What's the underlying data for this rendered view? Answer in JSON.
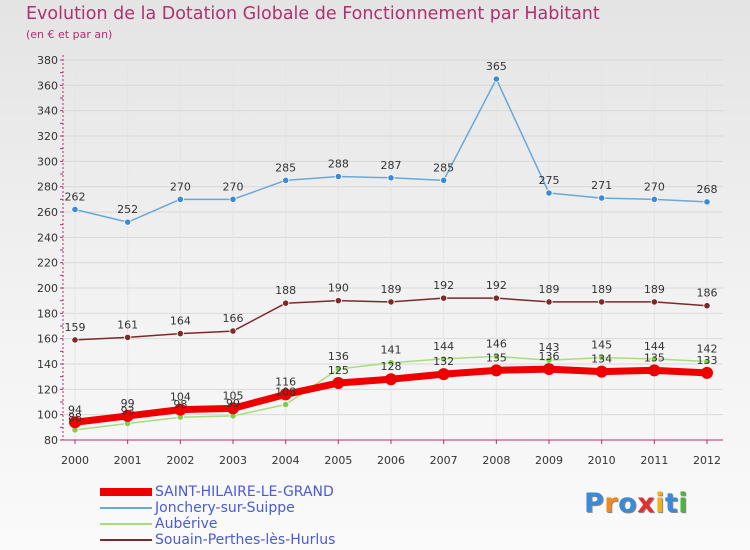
{
  "header": {
    "title": "Evolution de la Dotation Globale de Fonctionnement par Habitant",
    "subtitle": "(en € et par an)"
  },
  "brand": {
    "letters": [
      "P",
      "r",
      "o",
      "x",
      "i",
      "t",
      "i"
    ]
  },
  "colors": {
    "title": "#b03070",
    "axis": "#b03070",
    "grid": "#d8d8d8",
    "legend_text": "#4a5ad8",
    "brand": [
      "#3a8ad8",
      "#f08a20",
      "#3a8ad8",
      "#e03030",
      "#f0b020",
      "#3a8ad8",
      "#50b040"
    ]
  },
  "chart_data": {
    "type": "line",
    "title": "Evolution de la Dotation Globale de Fonctionnement par Habitant",
    "ylabel": "(en € et par an)",
    "xlabel": "",
    "x": [
      "2000",
      "2001",
      "2002",
      "2003",
      "2004",
      "2005",
      "2006",
      "2007",
      "2008",
      "2009",
      "2010",
      "2011",
      "2012"
    ],
    "ylim": [
      80,
      380
    ],
    "yticks": [
      80,
      100,
      120,
      140,
      160,
      180,
      200,
      220,
      240,
      260,
      280,
      300,
      320,
      340,
      360,
      380
    ],
    "grid": true,
    "legend_position": "bottom-left",
    "series": [
      {
        "name": "SAINT-HILAIRE-LE-GRAND",
        "color": "#ee0000",
        "marker": "#ee0000",
        "width": 7,
        "values": [
          94,
          99,
          104,
          105,
          116,
          125,
          128,
          132,
          135,
          136,
          134,
          135,
          133
        ],
        "labels": [
          "94",
          "99",
          "104",
          "105",
          "116",
          "125",
          "128",
          "132",
          "135",
          "136",
          "134",
          "135",
          "133"
        ]
      },
      {
        "name": "Jonchery-sur-Suippe",
        "color": "#6aa8d8",
        "marker": "#3a8ad8",
        "width": 1.5,
        "values": [
          262,
          252,
          270,
          270,
          285,
          288,
          287,
          285,
          365,
          275,
          271,
          270,
          268
        ],
        "labels": [
          "262",
          "252",
          "270",
          "270",
          "285",
          "288",
          "287",
          "285",
          "365",
          "275",
          "271",
          "270",
          "268"
        ]
      },
      {
        "name": "Aubérive",
        "color": "#a8dc80",
        "marker": "#80cc50",
        "width": 1.5,
        "values": [
          88,
          93,
          98,
          99,
          108,
          136,
          141,
          144,
          146,
          143,
          145,
          144,
          142
        ],
        "labels": [
          "88",
          "93",
          "98",
          "99",
          "108",
          "136",
          "141",
          "144",
          "146",
          "143",
          "145",
          "144",
          "142"
        ]
      },
      {
        "name": "Souain-Perthes-lès-Hurlus",
        "color": "#7a2a2a",
        "marker": "#7a2a2a",
        "width": 1.5,
        "values": [
          159,
          161,
          164,
          166,
          188,
          190,
          189,
          192,
          192,
          189,
          189,
          189,
          186
        ],
        "labels": [
          "159",
          "161",
          "164",
          "166",
          "188",
          "190",
          "189",
          "192",
          "192",
          "189",
          "189",
          "189",
          "186"
        ]
      }
    ]
  }
}
